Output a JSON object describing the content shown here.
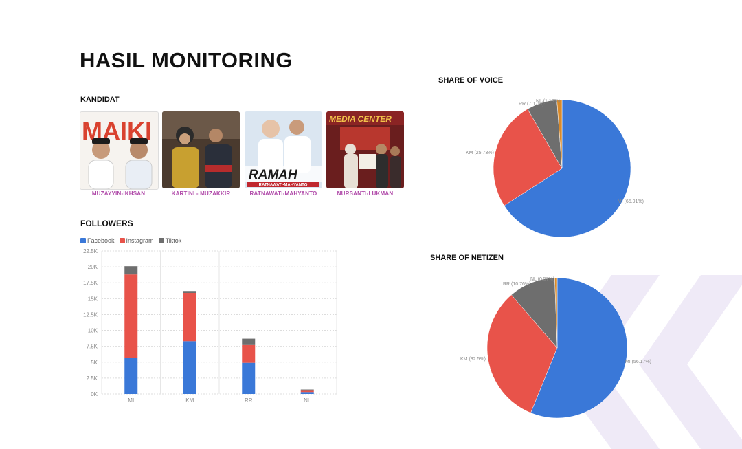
{
  "page": {
    "title": "HASIL MONITORING",
    "kandidat_label": "KANDIDAT",
    "followers_label": "FOLLOWERS"
  },
  "candidates": [
    {
      "name": "MUZAYYIN-IKHSAN",
      "poster_text": "MAIKI"
    },
    {
      "name": "KARTINI - MUZAKKIR"
    },
    {
      "name": "RATNAWATI-MAHYANTO",
      "poster_text": "RAMAH",
      "poster_subtext": "RATNAWATI-MAHYANTO"
    },
    {
      "name": "NURSANTI-LUKMAN",
      "poster_text": "MEDIA CENTER"
    }
  ],
  "colors": {
    "facebook": "#3a78d8",
    "instagram": "#e8534a",
    "tiktok": "#6e6e6e",
    "nl": "#d98a2a",
    "candidate_name": "#b04aa9"
  },
  "chart_data": [
    {
      "type": "bar",
      "stacked": true,
      "categories": [
        "MI",
        "KM",
        "RR",
        "NL"
      ],
      "series": [
        {
          "name": "Facebook",
          "values": [
            5700,
            8300,
            4900,
            300
          ]
        },
        {
          "name": "Instagram",
          "values": [
            13100,
            7600,
            2800,
            300
          ]
        },
        {
          "name": "Tiktok",
          "values": [
            1300,
            300,
            1000,
            100
          ]
        }
      ],
      "ylim": [
        0,
        22500
      ],
      "yticks": [
        "0K",
        "2.5K",
        "5K",
        "7.5K",
        "10K",
        "12.5K",
        "15K",
        "17.5K",
        "20K",
        "22.5K"
      ],
      "legend": "top-left",
      "grid": true
    },
    {
      "type": "pie",
      "title": "SHARE OF VOICE",
      "slices": [
        {
          "label": "MI (65.91%)",
          "value": 65.91
        },
        {
          "label": "KM (25.73%)",
          "value": 25.73
        },
        {
          "label": "RR (7.17%)",
          "value": 7.17
        },
        {
          "label": "NL (1.19%)",
          "value": 1.19
        }
      ]
    },
    {
      "type": "pie",
      "title": "SHARE OF NETIZEN",
      "slices": [
        {
          "label": "MI (56.17%)",
          "value": 56.17
        },
        {
          "label": "KM (32.5%)",
          "value": 32.5
        },
        {
          "label": "RR (10.76%)",
          "value": 10.76
        },
        {
          "label": "NL (0.57%)",
          "value": 0.57
        }
      ]
    }
  ]
}
